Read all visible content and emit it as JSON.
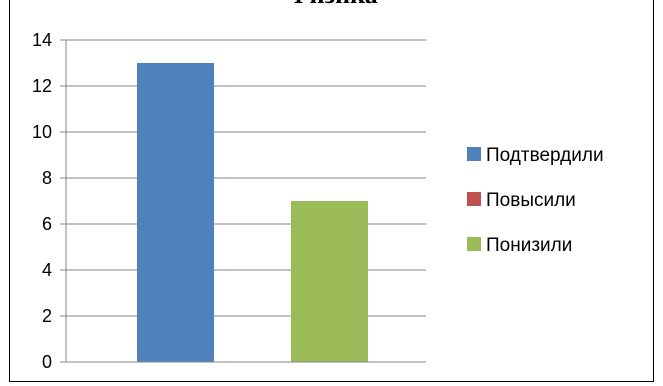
{
  "chart_data": {
    "type": "bar",
    "title": "Физика",
    "categories": [
      "Подтвердили",
      "Повысили",
      "Понизили"
    ],
    "values": [
      13,
      0,
      7
    ],
    "colors": [
      "#4f81bd",
      "#c0504d",
      "#9bbb59"
    ],
    "ylim": [
      0,
      14
    ],
    "yticks": [
      "0",
      "2",
      "4",
      "6",
      "8",
      "10",
      "12",
      "14"
    ],
    "grid": true,
    "legend": {
      "position": "right",
      "entries": [
        "Подтвердили",
        "Повысили",
        "Понизили"
      ]
    }
  }
}
